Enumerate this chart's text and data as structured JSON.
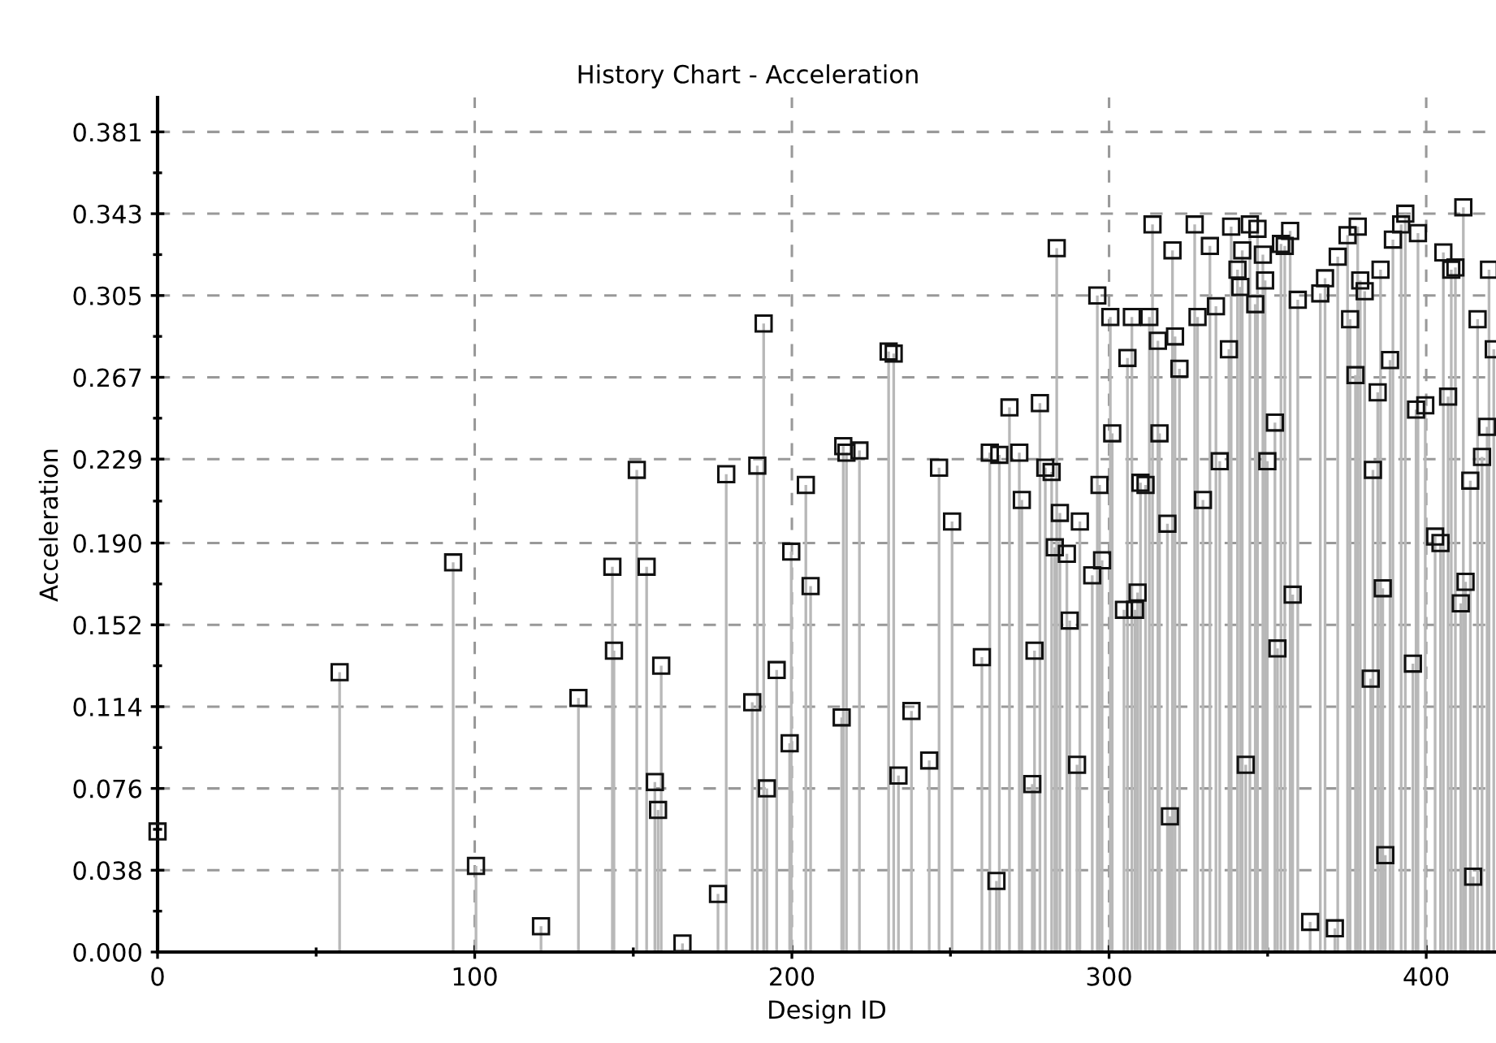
{
  "chart_data": {
    "type": "lollipop",
    "title": "History Chart - Acceleration",
    "xlabel": "Design ID",
    "ylabel": "Acceleration",
    "xlim": [
      0,
      422
    ],
    "xticks": [
      0,
      100,
      200,
      300,
      400
    ],
    "ylim": [
      0,
      0.397
    ],
    "yticks": [
      {
        "value": 0,
        "label": "0.000"
      },
      {
        "value": 0.038,
        "label": "0.038"
      },
      {
        "value": 0.076,
        "label": "0.076"
      },
      {
        "value": 0.114,
        "label": "0.114"
      },
      {
        "value": 0.152,
        "label": "0.152"
      },
      {
        "value": 0.19,
        "label": "0.190"
      },
      {
        "value": 0.229,
        "label": "0.229"
      },
      {
        "value": 0.267,
        "label": "0.267"
      },
      {
        "value": 0.305,
        "label": "0.305"
      },
      {
        "value": 0.343,
        "label": "0.343"
      },
      {
        "value": 0.381,
        "label": "0.381"
      }
    ],
    "grid": true,
    "marker": "square",
    "line_style": "solid",
    "series": [
      {
        "color": "#111111",
        "x": [
          0,
          57.4,
          93.2,
          100.4,
          120.9,
          132.7,
          143.4,
          143.9,
          151.1,
          154.2,
          156.8,
          157.8,
          158.8,
          165.5,
          176.7,
          179.3,
          187.5,
          189.1,
          191.1,
          192.1,
          195.2,
          199.3,
          199.8,
          204.4,
          205.9,
          215.7,
          216.2,
          217.2,
          221.3,
          230.5,
          232.1,
          233.6,
          237.7,
          243.3,
          246.4,
          250.5,
          259.9,
          262.4,
          264.5,
          265.4,
          268.6,
          271.7,
          272.5,
          275.8,
          276.5,
          278.2,
          279.9,
          281.9,
          282.9,
          283.5,
          284.5,
          286.7,
          287.6,
          289.9,
          290.8,
          294.7,
          296.3,
          297.0,
          297.8,
          300.4,
          301.0,
          304.7,
          305.8,
          307.2,
          308.2,
          309.0,
          309.9,
          311.5,
          312.7,
          313.7,
          315.4,
          315.9,
          318.4,
          319.2,
          320.0,
          320.8,
          322.2,
          327.0,
          327.9,
          329.6,
          331.8,
          333.7,
          334.9,
          337.8,
          338.5,
          340.5,
          341.4,
          342.0,
          343.1,
          344.4,
          346.1,
          346.8,
          348.5,
          349.2,
          349.9,
          352.3,
          353.1,
          354.2,
          355.4,
          357.1,
          357.9,
          359.5,
          363.4,
          366.6,
          368.1,
          371.2,
          372.1,
          375.2,
          376.0,
          377.7,
          378.4,
          379.2,
          380.6,
          382.5,
          383.2,
          384.7,
          385.6,
          386.3,
          387.1,
          388.6,
          389.5,
          392.1,
          393.4,
          395.8,
          396.8,
          397.4,
          399.7,
          402.8,
          404.5,
          405.4,
          406.9,
          407.9,
          409.2,
          410.9,
          411.7,
          412.4,
          413.9,
          414.8,
          416.2,
          417.6,
          419.2,
          419.8,
          421.3
        ],
        "values": [
          0.056,
          0.13,
          0.181,
          0.04,
          0.012,
          0.118,
          0.179,
          0.14,
          0.224,
          0.179,
          0.079,
          0.066,
          0.133,
          0.004,
          0.027,
          0.222,
          0.116,
          0.226,
          0.292,
          0.076,
          0.131,
          0.097,
          0.186,
          0.217,
          0.17,
          0.109,
          0.235,
          0.232,
          0.233,
          0.279,
          0.278,
          0.082,
          0.112,
          0.089,
          0.225,
          0.2,
          0.137,
          0.232,
          0.033,
          0.231,
          0.253,
          0.232,
          0.21,
          0.078,
          0.14,
          0.255,
          0.225,
          0.223,
          0.188,
          0.327,
          0.204,
          0.185,
          0.154,
          0.087,
          0.2,
          0.175,
          0.305,
          0.217,
          0.182,
          0.295,
          0.241,
          0.159,
          0.276,
          0.295,
          0.159,
          0.167,
          0.218,
          0.217,
          0.295,
          0.338,
          0.284,
          0.241,
          0.199,
          0.063,
          0.326,
          0.286,
          0.271,
          0.338,
          0.295,
          0.21,
          0.328,
          0.3,
          0.228,
          0.28,
          0.337,
          0.317,
          0.309,
          0.326,
          0.087,
          0.338,
          0.301,
          0.336,
          0.324,
          0.312,
          0.228,
          0.246,
          0.141,
          0.329,
          0.328,
          0.335,
          0.166,
          0.303,
          0.014,
          0.306,
          0.313,
          0.011,
          0.323,
          0.333,
          0.294,
          0.268,
          0.337,
          0.312,
          0.307,
          0.127,
          0.224,
          0.26,
          0.317,
          0.169,
          0.045,
          0.275,
          0.331,
          0.338,
          0.343,
          0.134,
          0.252,
          0.334,
          0.254,
          0.193,
          0.19,
          0.325,
          0.258,
          0.317,
          0.318,
          0.162,
          0.346,
          0.172,
          0.219,
          0.035,
          0.294,
          0.23,
          0.244,
          0.317,
          0.28
        ]
      }
    ]
  }
}
